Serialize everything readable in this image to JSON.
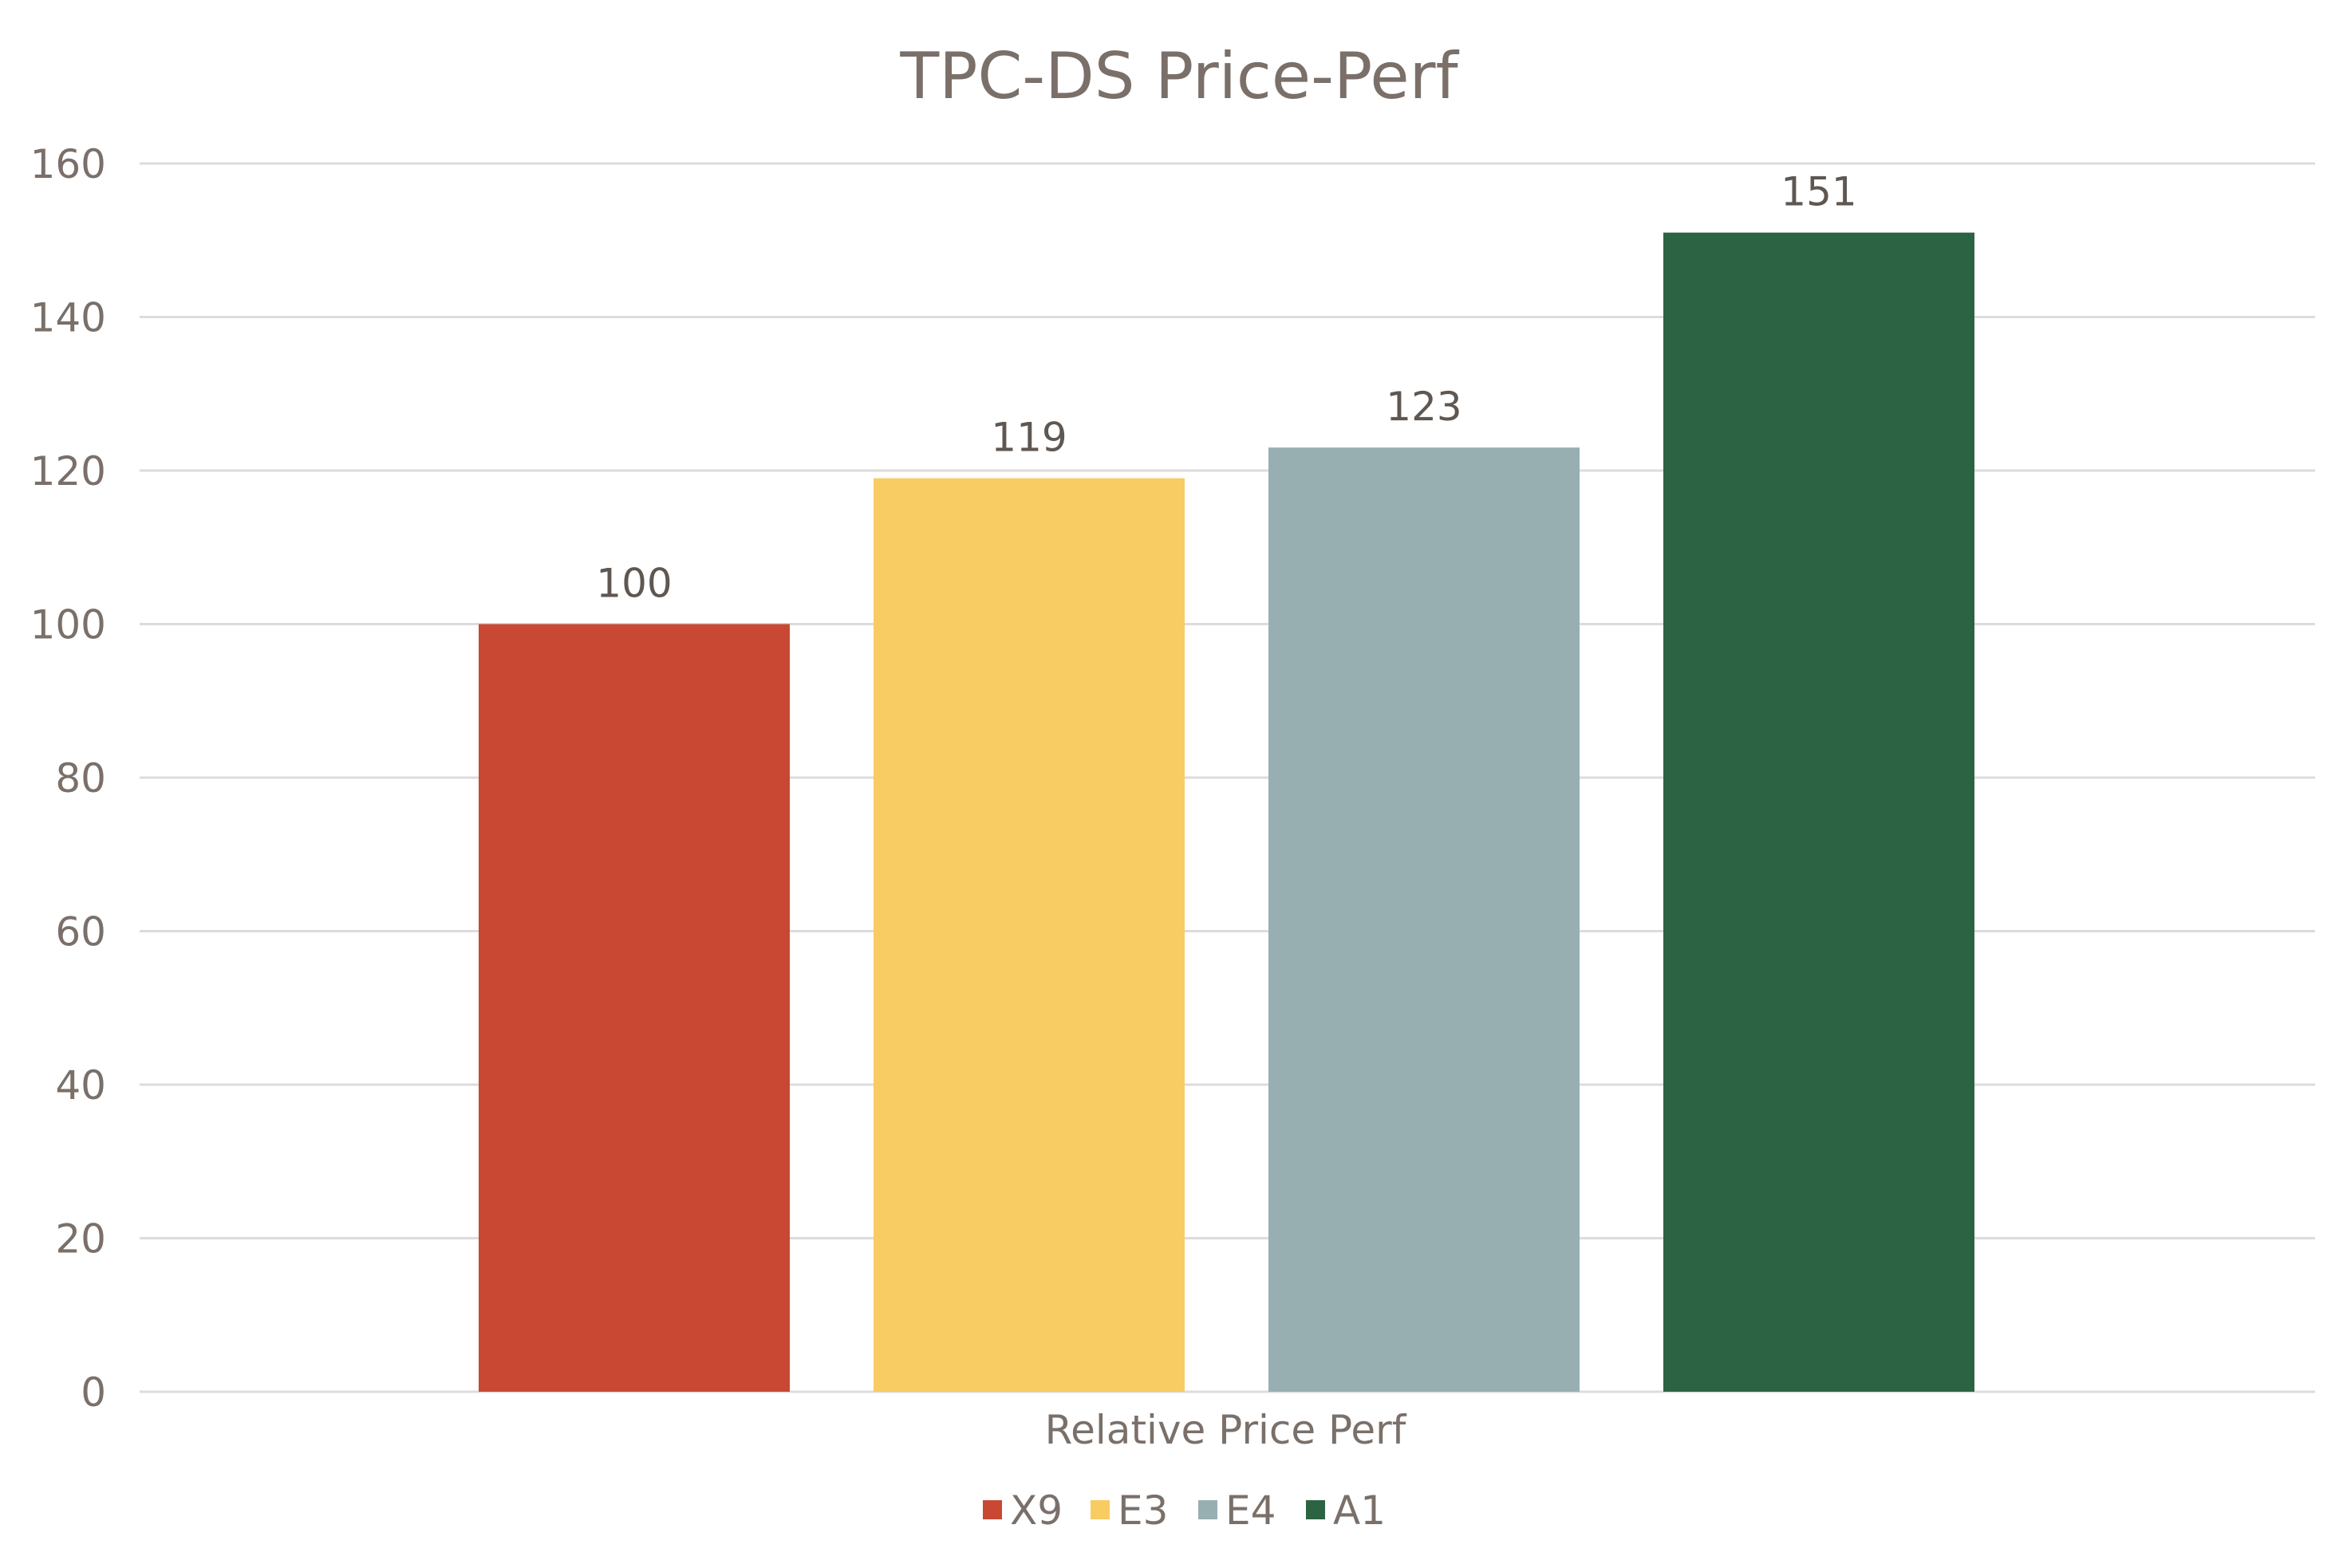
{
  "chart_data": {
    "type": "bar",
    "title": "TPC-DS Price-Perf",
    "xlabel": "",
    "ylabel": "",
    "categories": [
      "Relative Price Perf"
    ],
    "series": [
      {
        "name": "X9",
        "values": [
          100
        ],
        "color": "#c84834"
      },
      {
        "name": "E3",
        "values": [
          119
        ],
        "color": "#f8cb63"
      },
      {
        "name": "E4",
        "values": [
          123
        ],
        "color": "#97afb1"
      },
      {
        "name": "A1",
        "values": [
          151
        ],
        "color": "#2c6342"
      }
    ],
    "ylim": [
      0,
      160
    ],
    "yticks": [
      0,
      20,
      40,
      60,
      80,
      100,
      120,
      140,
      160
    ],
    "grid": true,
    "data_labels": true,
    "legend": "bottom",
    "colors": {
      "text": "#7a7069",
      "value_label": "#5f5751",
      "grid": "#dcdcdc"
    }
  }
}
